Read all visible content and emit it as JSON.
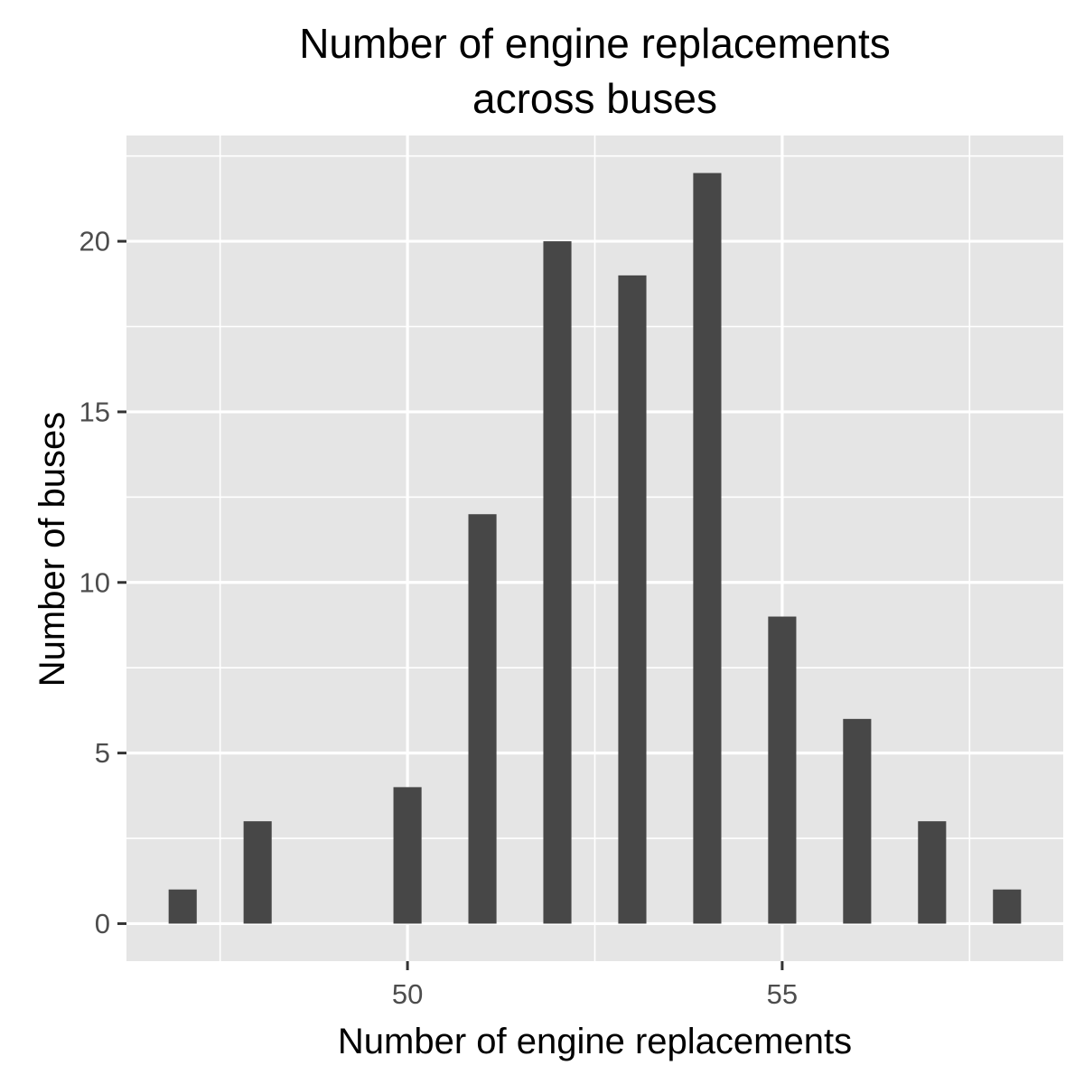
{
  "chart_data": {
    "type": "bar",
    "title_lines": [
      "Number of engine replacements",
      "across buses"
    ],
    "xlabel": "Number of engine replacements",
    "ylabel": "Number of buses",
    "x": [
      47,
      48,
      50,
      51,
      52,
      53,
      54,
      55,
      56,
      57,
      58
    ],
    "values": [
      1,
      3,
      4,
      12,
      20,
      19,
      22,
      9,
      6,
      3,
      1
    ],
    "bar_width": 0.375,
    "xlim": [
      46.25,
      58.75
    ],
    "ylim": [
      -1.1,
      23.1
    ],
    "xticks": [
      50,
      55
    ],
    "xtick_labels": [
      "50",
      "55"
    ],
    "yticks": [
      0,
      5,
      10,
      15,
      20
    ],
    "ytick_labels": [
      "0",
      "5",
      "10",
      "15",
      "20"
    ],
    "x_minor_grid": [
      47.5,
      52.5,
      57.5
    ],
    "y_minor_grid": [
      2.5,
      7.5,
      12.5,
      17.5,
      22.5
    ],
    "grid": true,
    "colors": {
      "panel_background": "#e5e5e5",
      "grid": "#ffffff",
      "bar_fill": "#474747",
      "axis_tick": "#333333",
      "tick_label": "#4d4d4d"
    }
  }
}
